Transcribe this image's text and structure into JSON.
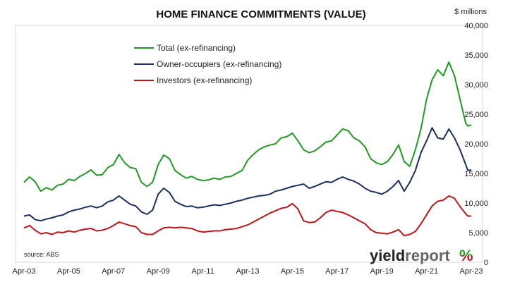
{
  "chart_data": {
    "type": "line",
    "title": "HOME FINANCE COMMITMENTS (VALUE)",
    "ylabel": "$ millions",
    "ylim": [
      0,
      40000
    ],
    "y_ticks": [
      "0",
      "5,000",
      "10,000",
      "15,000",
      "20,000",
      "25,000",
      "30,000",
      "35,000",
      "40,000"
    ],
    "y_tick_values": [
      0,
      5000,
      10000,
      15000,
      20000,
      25000,
      30000,
      35000,
      40000
    ],
    "xlim": [
      2003.25,
      2023.25
    ],
    "x_tick_labels": [
      "Apr-03",
      "Apr-05",
      "Apr-07",
      "Apr-09",
      "Apr-11",
      "Apr-13",
      "Apr-15",
      "Apr-17",
      "Apr-19",
      "Apr-21",
      "Apr-23"
    ],
    "x_tick_values": [
      2003.25,
      2005.25,
      2007.25,
      2009.25,
      2011.25,
      2013.25,
      2015.25,
      2017.25,
      2019.25,
      2021.25,
      2023.25
    ],
    "grid": false,
    "legend_position": "top-left",
    "series": [
      {
        "name": "Total (ex-refinancing)",
        "color": "#1f9b1f",
        "points": [
          [
            2003.25,
            13500
          ],
          [
            2003.5,
            14400
          ],
          [
            2003.75,
            13600
          ],
          [
            2004.0,
            12000
          ],
          [
            2004.25,
            12600
          ],
          [
            2004.5,
            12200
          ],
          [
            2004.75,
            13000
          ],
          [
            2005.0,
            13200
          ],
          [
            2005.25,
            14000
          ],
          [
            2005.5,
            13800
          ],
          [
            2005.75,
            14500
          ],
          [
            2006.0,
            15000
          ],
          [
            2006.25,
            15600
          ],
          [
            2006.5,
            14700
          ],
          [
            2006.75,
            14800
          ],
          [
            2007.0,
            16000
          ],
          [
            2007.25,
            16500
          ],
          [
            2007.5,
            18200
          ],
          [
            2007.75,
            16800
          ],
          [
            2008.0,
            16000
          ],
          [
            2008.25,
            15800
          ],
          [
            2008.5,
            13500
          ],
          [
            2008.75,
            12800
          ],
          [
            2009.0,
            13500
          ],
          [
            2009.25,
            16500
          ],
          [
            2009.5,
            18100
          ],
          [
            2009.75,
            17500
          ],
          [
            2010.0,
            15500
          ],
          [
            2010.25,
            14800
          ],
          [
            2010.5,
            14200
          ],
          [
            2010.75,
            14500
          ],
          [
            2011.0,
            14000
          ],
          [
            2011.25,
            13800
          ],
          [
            2011.5,
            13900
          ],
          [
            2011.75,
            14200
          ],
          [
            2012.0,
            14000
          ],
          [
            2012.25,
            14400
          ],
          [
            2012.5,
            14500
          ],
          [
            2012.75,
            15000
          ],
          [
            2013.0,
            15500
          ],
          [
            2013.25,
            17200
          ],
          [
            2013.5,
            18200
          ],
          [
            2013.75,
            19000
          ],
          [
            2014.0,
            19500
          ],
          [
            2014.25,
            19800
          ],
          [
            2014.5,
            20000
          ],
          [
            2014.75,
            21000
          ],
          [
            2015.0,
            21200
          ],
          [
            2015.25,
            21800
          ],
          [
            2015.5,
            20500
          ],
          [
            2015.75,
            19000
          ],
          [
            2016.0,
            18500
          ],
          [
            2016.25,
            18800
          ],
          [
            2016.5,
            19500
          ],
          [
            2016.75,
            20300
          ],
          [
            2017.0,
            20500
          ],
          [
            2017.25,
            21500
          ],
          [
            2017.5,
            22500
          ],
          [
            2017.75,
            22200
          ],
          [
            2018.0,
            21000
          ],
          [
            2018.25,
            20500
          ],
          [
            2018.5,
            19500
          ],
          [
            2018.75,
            17500
          ],
          [
            2019.0,
            16800
          ],
          [
            2019.25,
            16500
          ],
          [
            2019.5,
            17000
          ],
          [
            2019.75,
            18200
          ],
          [
            2020.0,
            19800
          ],
          [
            2020.25,
            17000
          ],
          [
            2020.5,
            16200
          ],
          [
            2020.75,
            19000
          ],
          [
            2021.0,
            22500
          ],
          [
            2021.25,
            27500
          ],
          [
            2021.5,
            30800
          ],
          [
            2021.75,
            32500
          ],
          [
            2022.0,
            31500
          ],
          [
            2022.25,
            33800
          ],
          [
            2022.5,
            31500
          ],
          [
            2022.75,
            27500
          ],
          [
            2023.0,
            23500
          ],
          [
            2023.1,
            23000
          ],
          [
            2023.25,
            23200
          ]
        ]
      },
      {
        "name": "Owner-occupiers (ex-refinancing)",
        "color": "#1a2f5e",
        "points": [
          [
            2003.25,
            7800
          ],
          [
            2003.5,
            8000
          ],
          [
            2003.75,
            7200
          ],
          [
            2004.0,
            7000
          ],
          [
            2004.25,
            7300
          ],
          [
            2004.5,
            7500
          ],
          [
            2004.75,
            7800
          ],
          [
            2005.0,
            8000
          ],
          [
            2005.25,
            8500
          ],
          [
            2005.5,
            8800
          ],
          [
            2005.75,
            9000
          ],
          [
            2006.0,
            9300
          ],
          [
            2006.25,
            9500
          ],
          [
            2006.5,
            9200
          ],
          [
            2006.75,
            9500
          ],
          [
            2007.0,
            10200
          ],
          [
            2007.25,
            10500
          ],
          [
            2007.5,
            11200
          ],
          [
            2007.75,
            10500
          ],
          [
            2008.0,
            9800
          ],
          [
            2008.25,
            9500
          ],
          [
            2008.5,
            8500
          ],
          [
            2008.75,
            8100
          ],
          [
            2009.0,
            8800
          ],
          [
            2009.25,
            11500
          ],
          [
            2009.5,
            12500
          ],
          [
            2009.75,
            11800
          ],
          [
            2010.0,
            10300
          ],
          [
            2010.25,
            9800
          ],
          [
            2010.5,
            9400
          ],
          [
            2010.75,
            9500
          ],
          [
            2011.0,
            9200
          ],
          [
            2011.25,
            9300
          ],
          [
            2011.5,
            9500
          ],
          [
            2011.75,
            9700
          ],
          [
            2012.0,
            9600
          ],
          [
            2012.25,
            9800
          ],
          [
            2012.5,
            10000
          ],
          [
            2012.75,
            10300
          ],
          [
            2013.0,
            10500
          ],
          [
            2013.25,
            10800
          ],
          [
            2013.5,
            11000
          ],
          [
            2013.75,
            11200
          ],
          [
            2014.0,
            11300
          ],
          [
            2014.25,
            11500
          ],
          [
            2014.5,
            12000
          ],
          [
            2014.75,
            12200
          ],
          [
            2015.0,
            12500
          ],
          [
            2015.25,
            12800
          ],
          [
            2015.5,
            13000
          ],
          [
            2015.75,
            13200
          ],
          [
            2016.0,
            12500
          ],
          [
            2016.25,
            12800
          ],
          [
            2016.5,
            13200
          ],
          [
            2016.75,
            13600
          ],
          [
            2017.0,
            13500
          ],
          [
            2017.25,
            14000
          ],
          [
            2017.5,
            14400
          ],
          [
            2017.75,
            14000
          ],
          [
            2018.0,
            13700
          ],
          [
            2018.25,
            13200
          ],
          [
            2018.5,
            12500
          ],
          [
            2018.75,
            12000
          ],
          [
            2019.0,
            11800
          ],
          [
            2019.25,
            11500
          ],
          [
            2019.5,
            12000
          ],
          [
            2019.75,
            12800
          ],
          [
            2020.0,
            13800
          ],
          [
            2020.25,
            12000
          ],
          [
            2020.5,
            13500
          ],
          [
            2020.75,
            15500
          ],
          [
            2021.0,
            18500
          ],
          [
            2021.25,
            20500
          ],
          [
            2021.5,
            22700
          ],
          [
            2021.75,
            21000
          ],
          [
            2022.0,
            20800
          ],
          [
            2022.25,
            22500
          ],
          [
            2022.5,
            21000
          ],
          [
            2022.75,
            19000
          ],
          [
            2023.0,
            16500
          ],
          [
            2023.1,
            15500
          ],
          [
            2023.25,
            15600
          ]
        ]
      },
      {
        "name": "Investors (ex-refinancing)",
        "color": "#c0151a",
        "points": [
          [
            2003.25,
            5800
          ],
          [
            2003.5,
            6200
          ],
          [
            2003.75,
            5400
          ],
          [
            2004.0,
            4800
          ],
          [
            2004.25,
            5000
          ],
          [
            2004.5,
            4700
          ],
          [
            2004.75,
            5100
          ],
          [
            2005.0,
            5000
          ],
          [
            2005.25,
            5300
          ],
          [
            2005.5,
            5100
          ],
          [
            2005.75,
            5400
          ],
          [
            2006.0,
            5600
          ],
          [
            2006.25,
            5700
          ],
          [
            2006.5,
            5300
          ],
          [
            2006.75,
            5400
          ],
          [
            2007.0,
            5700
          ],
          [
            2007.25,
            6200
          ],
          [
            2007.5,
            6800
          ],
          [
            2007.75,
            6500
          ],
          [
            2008.0,
            6200
          ],
          [
            2008.25,
            6000
          ],
          [
            2008.5,
            5000
          ],
          [
            2008.75,
            4700
          ],
          [
            2009.0,
            4700
          ],
          [
            2009.25,
            5300
          ],
          [
            2009.5,
            5800
          ],
          [
            2009.75,
            5900
          ],
          [
            2010.0,
            5800
          ],
          [
            2010.25,
            5900
          ],
          [
            2010.5,
            5800
          ],
          [
            2010.75,
            5700
          ],
          [
            2011.0,
            5300
          ],
          [
            2011.25,
            5100
          ],
          [
            2011.5,
            5200
          ],
          [
            2011.75,
            5300
          ],
          [
            2012.0,
            5300
          ],
          [
            2012.25,
            5500
          ],
          [
            2012.5,
            5600
          ],
          [
            2012.75,
            5700
          ],
          [
            2013.0,
            6000
          ],
          [
            2013.25,
            6300
          ],
          [
            2013.5,
            6800
          ],
          [
            2013.75,
            7300
          ],
          [
            2014.0,
            7800
          ],
          [
            2014.25,
            8300
          ],
          [
            2014.5,
            8700
          ],
          [
            2014.75,
            9100
          ],
          [
            2015.0,
            9300
          ],
          [
            2015.25,
            9900
          ],
          [
            2015.5,
            9000
          ],
          [
            2015.75,
            7000
          ],
          [
            2016.0,
            6700
          ],
          [
            2016.25,
            6800
          ],
          [
            2016.5,
            7500
          ],
          [
            2016.75,
            8400
          ],
          [
            2017.0,
            8800
          ],
          [
            2017.25,
            8600
          ],
          [
            2017.5,
            8400
          ],
          [
            2017.75,
            8000
          ],
          [
            2018.0,
            7500
          ],
          [
            2018.25,
            7000
          ],
          [
            2018.5,
            6500
          ],
          [
            2018.75,
            5500
          ],
          [
            2019.0,
            5000
          ],
          [
            2019.25,
            4900
          ],
          [
            2019.5,
            4800
          ],
          [
            2019.75,
            5100
          ],
          [
            2020.0,
            5500
          ],
          [
            2020.25,
            4500
          ],
          [
            2020.5,
            4700
          ],
          [
            2020.75,
            5200
          ],
          [
            2021.0,
            6500
          ],
          [
            2021.25,
            8000
          ],
          [
            2021.5,
            9500
          ],
          [
            2021.75,
            10300
          ],
          [
            2022.0,
            10500
          ],
          [
            2022.25,
            11200
          ],
          [
            2022.5,
            10800
          ],
          [
            2022.75,
            9400
          ],
          [
            2023.0,
            8200
          ],
          [
            2023.1,
            7800
          ],
          [
            2023.25,
            7800
          ]
        ]
      }
    ]
  },
  "source_note": "source: ABS",
  "brand": {
    "part1": "yield",
    "part2": "report",
    "symbol": "%",
    "part1_color": "#222222",
    "part2_color": "#666666",
    "symbol_top_color": "#1f9b1f",
    "symbol_bottom_color": "#c0151a"
  }
}
